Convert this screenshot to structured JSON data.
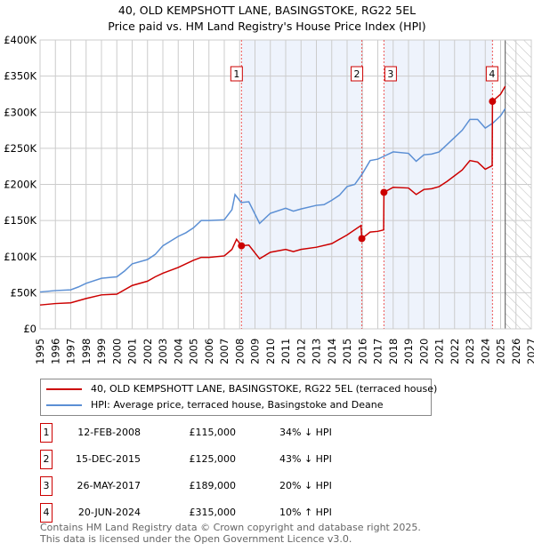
{
  "title": "40, OLD KEMPSHOTT LANE, BASINGSTOKE, RG22 5EL",
  "subtitle": "Price paid vs. HM Land Registry's House Price Index (HPI)",
  "chart_data": {
    "type": "line",
    "title": "40, OLD KEMPSHOTT LANE, BASINGSTOKE, RG22 5EL",
    "subtitle": "Price paid vs. HM Land Registry's House Price Index (HPI)",
    "xlim": [
      1995,
      2027
    ],
    "ylim": [
      0,
      400000
    ],
    "xticks": [
      "1995",
      "1996",
      "1997",
      "1998",
      "1999",
      "2000",
      "2001",
      "2002",
      "2003",
      "2004",
      "2005",
      "2006",
      "2007",
      "2008",
      "2009",
      "2010",
      "2011",
      "2012",
      "2013",
      "2014",
      "2015",
      "2016",
      "2017",
      "2018",
      "2019",
      "2020",
      "2021",
      "2022",
      "2023",
      "2024",
      "2025",
      "2026",
      "2027"
    ],
    "yticks": [
      {
        "v": 0,
        "label": "£0"
      },
      {
        "v": 50000,
        "label": "£50K"
      },
      {
        "v": 100000,
        "label": "£100K"
      },
      {
        "v": 150000,
        "label": "£150K"
      },
      {
        "v": 200000,
        "label": "£200K"
      },
      {
        "v": 250000,
        "label": "£250K"
      },
      {
        "v": 300000,
        "label": "£300K"
      },
      {
        "v": 350000,
        "label": "£350K"
      },
      {
        "v": 400000,
        "label": "£400K"
      }
    ],
    "grid": true,
    "forecast_start": 2025.3,
    "shaded_ranges": [
      [
        2008.12,
        2015.96
      ],
      [
        2017.4,
        2024.47
      ]
    ],
    "series": [
      {
        "name": "40, OLD KEMPSHOTT LANE, BASINGSTOKE, RG22 5EL (terraced house)",
        "color": "#cc0000",
        "points": [
          [
            1995,
            33
          ],
          [
            1996,
            35
          ],
          [
            1997,
            36
          ],
          [
            1998,
            42
          ],
          [
            1999,
            47
          ],
          [
            2000,
            48
          ],
          [
            2001,
            60
          ],
          [
            2002,
            66
          ],
          [
            2002.5,
            72
          ],
          [
            2003,
            77
          ],
          [
            2004,
            85
          ],
          [
            2005,
            95
          ],
          [
            2005.5,
            99
          ],
          [
            2006,
            99
          ],
          [
            2007,
            101
          ],
          [
            2007.5,
            110
          ],
          [
            2007.8,
            124
          ],
          [
            2008.12,
            115
          ],
          [
            2008.6,
            116
          ],
          [
            2009.3,
            97
          ],
          [
            2010,
            106
          ],
          [
            2011,
            110
          ],
          [
            2011.5,
            107
          ],
          [
            2012,
            110
          ],
          [
            2013,
            113
          ],
          [
            2014,
            118
          ],
          [
            2015,
            130
          ],
          [
            2015.9,
            143
          ],
          [
            2015.96,
            125
          ],
          [
            2016.5,
            134
          ],
          [
            2017,
            135
          ],
          [
            2017.38,
            137
          ],
          [
            2017.4,
            189
          ],
          [
            2018,
            196
          ],
          [
            2019,
            195
          ],
          [
            2019.5,
            186
          ],
          [
            2020,
            193
          ],
          [
            2020.5,
            194
          ],
          [
            2021,
            197
          ],
          [
            2021.5,
            204
          ],
          [
            2022,
            212
          ],
          [
            2022.5,
            220
          ],
          [
            2023,
            233
          ],
          [
            2023.5,
            231
          ],
          [
            2024,
            221
          ],
          [
            2024.45,
            226
          ],
          [
            2024.47,
            315
          ],
          [
            2025,
            325
          ],
          [
            2025.3,
            336
          ]
        ]
      },
      {
        "name": "HPI: Average price, terraced house, Basingstoke and Deane",
        "color": "#5b8fd4",
        "points": [
          [
            1995,
            51
          ],
          [
            1996,
            53
          ],
          [
            1997,
            54
          ],
          [
            1997.5,
            58
          ],
          [
            1998,
            63
          ],
          [
            1999,
            70
          ],
          [
            2000,
            72
          ],
          [
            2000.5,
            80
          ],
          [
            2001,
            90
          ],
          [
            2002,
            96
          ],
          [
            2002.5,
            103
          ],
          [
            2003,
            115
          ],
          [
            2004,
            128
          ],
          [
            2004.5,
            133
          ],
          [
            2005,
            140
          ],
          [
            2005.5,
            150
          ],
          [
            2006,
            150
          ],
          [
            2007,
            151
          ],
          [
            2007.5,
            165
          ],
          [
            2007.7,
            186
          ],
          [
            2008.1,
            175
          ],
          [
            2008.6,
            176
          ],
          [
            2009.3,
            146
          ],
          [
            2010,
            160
          ],
          [
            2011,
            167
          ],
          [
            2011.5,
            163
          ],
          [
            2012,
            166
          ],
          [
            2013,
            171
          ],
          [
            2013.5,
            172
          ],
          [
            2014,
            178
          ],
          [
            2014.5,
            185
          ],
          [
            2015,
            197
          ],
          [
            2015.5,
            200
          ],
          [
            2016,
            215
          ],
          [
            2016.5,
            233
          ],
          [
            2017,
            235
          ],
          [
            2017.5,
            240
          ],
          [
            2018,
            245
          ],
          [
            2019,
            243
          ],
          [
            2019.5,
            232
          ],
          [
            2020,
            241
          ],
          [
            2020.5,
            242
          ],
          [
            2021,
            245
          ],
          [
            2021.5,
            255
          ],
          [
            2022,
            265
          ],
          [
            2022.5,
            275
          ],
          [
            2023,
            290
          ],
          [
            2023.5,
            290
          ],
          [
            2024,
            278
          ],
          [
            2024.5,
            285
          ],
          [
            2025,
            295
          ],
          [
            2025.3,
            305
          ]
        ]
      }
    ],
    "sales": [
      {
        "n": "1",
        "x": 2008.12,
        "date": "12-FEB-2008",
        "price": "£115,000",
        "value": 115,
        "hpi": "34% ↓ HPI"
      },
      {
        "n": "2",
        "x": 2015.96,
        "date": "15-DEC-2015",
        "price": "£125,000",
        "value": 125,
        "hpi": "43% ↓ HPI"
      },
      {
        "n": "3",
        "x": 2017.4,
        "date": "26-MAY-2017",
        "price": "£189,000",
        "value": 189,
        "hpi": "20% ↓ HPI"
      },
      {
        "n": "4",
        "x": 2024.47,
        "date": "20-JUN-2024",
        "price": "£315,000",
        "value": 315,
        "hpi": "10% ↑ HPI"
      }
    ]
  },
  "footer": [
    "Contains HM Land Registry data © Crown copyright and database right 2025.",
    "This data is licensed under the Open Government Licence v3.0."
  ]
}
